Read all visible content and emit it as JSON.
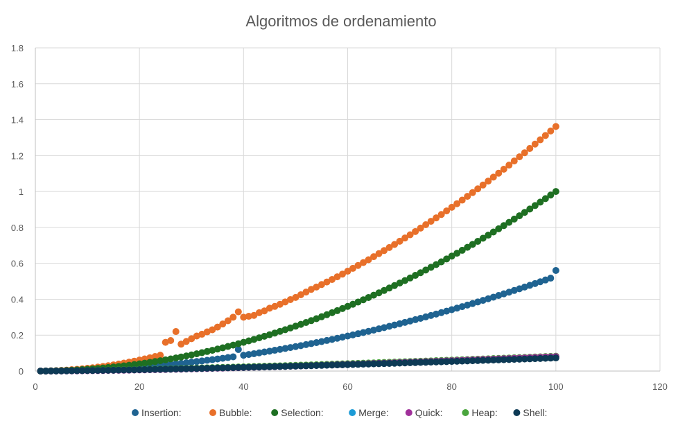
{
  "chart_data": {
    "type": "scatter",
    "title": "Algoritmos de ordenamiento",
    "xlabel": "",
    "ylabel": "",
    "xlim": [
      0,
      120
    ],
    "ylim": [
      0,
      1.8
    ],
    "x_ticks": [
      "0",
      "20",
      "40",
      "60",
      "80",
      "100",
      "120"
    ],
    "y_ticks": [
      "0",
      "0.2",
      "0.4",
      "0.6",
      "0.8",
      "1",
      "1.2",
      "1.4",
      "1.6",
      "1.8"
    ],
    "grid": true,
    "legend_position": "bottom",
    "x": [
      1,
      2,
      3,
      4,
      5,
      6,
      7,
      8,
      9,
      10,
      11,
      12,
      13,
      14,
      15,
      16,
      17,
      18,
      19,
      20,
      21,
      22,
      23,
      24,
      25,
      26,
      27,
      28,
      29,
      30,
      31,
      32,
      33,
      34,
      35,
      36,
      37,
      38,
      39,
      40,
      41,
      42,
      43,
      44,
      45,
      46,
      47,
      48,
      49,
      50,
      51,
      52,
      53,
      54,
      55,
      56,
      57,
      58,
      59,
      60,
      61,
      62,
      63,
      64,
      65,
      66,
      67,
      68,
      69,
      70,
      71,
      72,
      73,
      74,
      75,
      76,
      77,
      78,
      79,
      80,
      81,
      82,
      83,
      84,
      85,
      86,
      87,
      88,
      89,
      90,
      91,
      92,
      93,
      94,
      95,
      96,
      97,
      98,
      99,
      100
    ],
    "series": [
      {
        "name": "Insertion:",
        "color": "#1f6391",
        "values": [
          0.0001,
          0.0002,
          0.0005,
          0.0009,
          0.0014,
          0.002,
          0.0027,
          0.0035,
          0.0045,
          0.0055,
          0.0067,
          0.0079,
          0.0093,
          0.0108,
          0.0124,
          0.0141,
          0.0159,
          0.0178,
          0.0199,
          0.022,
          0.0243,
          0.0266,
          0.0291,
          0.0317,
          0.0344,
          0.0372,
          0.0401,
          0.0431,
          0.0463,
          0.0495,
          0.0529,
          0.0563,
          0.0599,
          0.0635,
          0.0673,
          0.0712,
          0.0752,
          0.0793,
          0.12,
          0.0878,
          0.0922,
          0.0967,
          0.1013,
          0.106,
          0.1108,
          0.1157,
          0.1207,
          0.1258,
          0.131,
          0.1363,
          0.1417,
          0.1473,
          0.1529,
          0.1586,
          0.1644,
          0.1703,
          0.1763,
          0.1825,
          0.1887,
          0.195,
          0.2014,
          0.2079,
          0.2146,
          0.2213,
          0.2281,
          0.235,
          0.242,
          0.2491,
          0.2563,
          0.2636,
          0.271,
          0.2785,
          0.2861,
          0.2938,
          0.3016,
          0.3095,
          0.3174,
          0.3255,
          0.3337,
          0.342,
          0.3503,
          0.3588,
          0.3674,
          0.376,
          0.3848,
          0.3936,
          0.4026,
          0.4116,
          0.4208,
          0.43,
          0.4394,
          0.4488,
          0.4583,
          0.4679,
          0.4776,
          0.4874,
          0.4973,
          0.5073,
          0.5174,
          0.56
        ]
      },
      {
        "name": "Bubble:",
        "color": "#e8702a",
        "values": [
          0.0002,
          0.0006,
          0.0014,
          0.0025,
          0.0038,
          0.0055,
          0.0075,
          0.0098,
          0.0124,
          0.0153,
          0.0185,
          0.022,
          0.0258,
          0.03,
          0.0344,
          0.0391,
          0.0442,
          0.0496,
          0.0552,
          0.0612,
          0.0675,
          0.0741,
          0.081,
          0.0882,
          0.16,
          0.17,
          0.22,
          0.15,
          0.165,
          0.18,
          0.195,
          0.205,
          0.218,
          0.23,
          0.245,
          0.262,
          0.28,
          0.3,
          0.33,
          0.3,
          0.305,
          0.31,
          0.325,
          0.335,
          0.35,
          0.36,
          0.372,
          0.385,
          0.398,
          0.41,
          0.425,
          0.44,
          0.455,
          0.468,
          0.482,
          0.496,
          0.51,
          0.525,
          0.54,
          0.556,
          0.572,
          0.588,
          0.604,
          0.62,
          0.637,
          0.654,
          0.671,
          0.688,
          0.705,
          0.723,
          0.741,
          0.759,
          0.777,
          0.796,
          0.815,
          0.834,
          0.853,
          0.872,
          0.892,
          0.912,
          0.932,
          0.952,
          0.973,
          0.994,
          1.015,
          1.036,
          1.058,
          1.08,
          1.102,
          1.124,
          1.147,
          1.17,
          1.193,
          1.216,
          1.24,
          1.264,
          1.288,
          1.312,
          1.337,
          1.362
        ]
      },
      {
        "name": "Selection:",
        "color": "#1e6f22",
        "values": [
          0.0001,
          0.0004,
          0.0009,
          0.0016,
          0.0025,
          0.0036,
          0.0049,
          0.0064,
          0.0081,
          0.01,
          0.0121,
          0.0144,
          0.0169,
          0.0196,
          0.0225,
          0.0256,
          0.0289,
          0.0324,
          0.0361,
          0.04,
          0.0441,
          0.0484,
          0.0529,
          0.0576,
          0.0625,
          0.0676,
          0.0729,
          0.0784,
          0.0841,
          0.09,
          0.0961,
          0.1024,
          0.1089,
          0.1156,
          0.1225,
          0.1296,
          0.1369,
          0.1444,
          0.1521,
          0.16,
          0.1681,
          0.1764,
          0.1849,
          0.1936,
          0.2025,
          0.2116,
          0.2209,
          0.2304,
          0.2401,
          0.25,
          0.2601,
          0.2704,
          0.2809,
          0.2916,
          0.3025,
          0.3136,
          0.3249,
          0.3364,
          0.3481,
          0.36,
          0.3721,
          0.3844,
          0.3969,
          0.4096,
          0.4225,
          0.4356,
          0.4489,
          0.4624,
          0.4761,
          0.49,
          0.5041,
          0.5184,
          0.5329,
          0.5476,
          0.5625,
          0.5776,
          0.5929,
          0.6084,
          0.6241,
          0.64,
          0.6561,
          0.6724,
          0.6889,
          0.7056,
          0.7225,
          0.7396,
          0.7569,
          0.7744,
          0.7921,
          0.81,
          0.8281,
          0.8464,
          0.8649,
          0.8836,
          0.9025,
          0.9216,
          0.9409,
          0.9604,
          0.9801,
          1.0
        ]
      },
      {
        "name": "Merge:",
        "color": "#1c9bd6",
        "values": []
      },
      {
        "name": "Quick:",
        "color": "#a0309a",
        "values": [
          0.0,
          0.0001,
          0.0002,
          0.0004,
          0.0006,
          0.0008,
          0.001,
          0.0013,
          0.0016,
          0.0019,
          0.0022,
          0.0026,
          0.003,
          0.0034,
          0.0038,
          0.0042,
          0.0047,
          0.0052,
          0.0057,
          0.0062,
          0.0067,
          0.0072,
          0.0078,
          0.0084,
          0.009,
          0.0096,
          0.0102,
          0.0108,
          0.0115,
          0.0122,
          0.0128,
          0.0135,
          0.0142,
          0.0149,
          0.0157,
          0.0164,
          0.0172,
          0.0179,
          0.0187,
          0.0195,
          0.0203,
          0.0211,
          0.0219,
          0.0227,
          0.0235,
          0.0244,
          0.0252,
          0.0261,
          0.027,
          0.0278,
          0.0287,
          0.0296,
          0.0305,
          0.0314,
          0.0323,
          0.0333,
          0.0342,
          0.0351,
          0.0361,
          0.037,
          0.038,
          0.039,
          0.04,
          0.041,
          0.042,
          0.043,
          0.044,
          0.045,
          0.046,
          0.047,
          0.048,
          0.049,
          0.05,
          0.0511,
          0.0521,
          0.0532,
          0.0542,
          0.0553,
          0.0564,
          0.0574,
          0.0585,
          0.0596,
          0.0607,
          0.0618,
          0.0629,
          0.064,
          0.0651,
          0.0662,
          0.0674,
          0.0685,
          0.0696,
          0.0708,
          0.0719,
          0.0731,
          0.0742,
          0.0754,
          0.0766,
          0.0777,
          0.0789,
          0.08
        ]
      },
      {
        "name": "Heap:",
        "color": "#4aa53d",
        "values": [
          0.0,
          0.0003,
          0.0006,
          0.0009,
          0.0013,
          0.0017,
          0.0021,
          0.0025,
          0.003,
          0.0035,
          0.004,
          0.0045,
          0.005,
          0.0055,
          0.006,
          0.0066,
          0.0072,
          0.0077,
          0.0083,
          0.009,
          0.0096,
          0.0102,
          0.0109,
          0.0115,
          0.0122,
          0.0129,
          0.0136,
          0.0143,
          0.015,
          0.0157,
          0.0164,
          0.0172,
          0.0179,
          0.0187,
          0.0194,
          0.0202,
          0.021,
          0.0218,
          0.0226,
          0.0234,
          0.0242,
          0.025,
          0.0258,
          0.0266,
          0.0275,
          0.0283,
          0.0292,
          0.03,
          0.0309,
          0.0318,
          0.0327,
          0.0335,
          0.0344,
          0.0353,
          0.0362,
          0.0372,
          0.0381,
          0.039,
          0.0399,
          0.0409,
          0.0418,
          0.0428,
          0.0437,
          0.0447,
          0.0456,
          0.0466,
          0.0476,
          0.0486,
          0.0496,
          0.0506,
          0.0516,
          0.0526,
          0.0536,
          0.0546,
          0.0556,
          0.0566,
          0.0577,
          0.0587,
          0.0597,
          0.0608,
          0.0618,
          0.0629,
          0.0639,
          0.065,
          0.0661,
          0.0672,
          0.0682,
          0.0693,
          0.0704,
          0.0715,
          0.0726,
          0.0737,
          0.0748,
          0.0759,
          0.077,
          0.0782,
          0.0793,
          0.0804,
          0.0816,
          0.0827
        ]
      },
      {
        "name": "Shell:",
        "color": "#0d3a55",
        "values": [
          0.0,
          0.0002,
          0.0004,
          0.0007,
          0.001,
          0.0013,
          0.0016,
          0.002,
          0.0024,
          0.0028,
          0.0032,
          0.0036,
          0.0041,
          0.0045,
          0.005,
          0.0055,
          0.006,
          0.0065,
          0.007,
          0.0076,
          0.0081,
          0.0087,
          0.0093,
          0.0098,
          0.0104,
          0.011,
          0.0116,
          0.0122,
          0.0129,
          0.0135,
          0.0141,
          0.0148,
          0.0154,
          0.0161,
          0.0168,
          0.0175,
          0.0182,
          0.0189,
          0.0196,
          0.0203,
          0.021,
          0.0217,
          0.0224,
          0.0232,
          0.0239,
          0.0247,
          0.0254,
          0.0262,
          0.027,
          0.0277,
          0.0285,
          0.0293,
          0.0301,
          0.0309,
          0.0317,
          0.0325,
          0.0333,
          0.0342,
          0.035,
          0.0358,
          0.0367,
          0.0375,
          0.0384,
          0.0392,
          0.0401,
          0.041,
          0.0418,
          0.0427,
          0.0436,
          0.0445,
          0.0454,
          0.0463,
          0.0472,
          0.0481,
          0.049,
          0.0499,
          0.0508,
          0.0518,
          0.0527,
          0.0536,
          0.0546,
          0.0555,
          0.0565,
          0.0574,
          0.0584,
          0.0593,
          0.0603,
          0.0613,
          0.0622,
          0.0632,
          0.0642,
          0.0652,
          0.0662,
          0.0672,
          0.0682,
          0.0692,
          0.0702,
          0.0712,
          0.0722,
          0.0732
        ]
      }
    ]
  }
}
